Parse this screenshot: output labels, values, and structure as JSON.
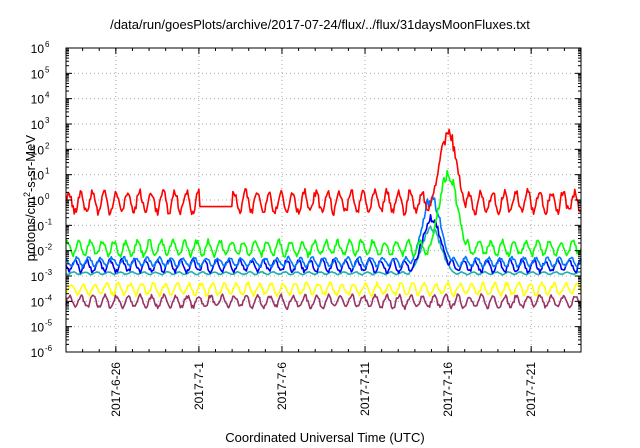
{
  "chart_data": {
    "type": "line",
    "title": "/data/run/goesPlots/archive/2017-07-24/flux/../flux/31daysMoonFluxes.txt",
    "xlabel": "Coordinated Universal Time (UTC)",
    "ylabel": {
      "prefix": "protons/cm",
      "exponent": "2",
      "suffix": "-s-sr-MeV"
    },
    "yscale": "log",
    "ylim_exponents": [
      -6,
      6
    ],
    "y_ticks": [
      {
        "base": "10",
        "exp": "-6"
      },
      {
        "base": "10",
        "exp": "-5"
      },
      {
        "base": "10",
        "exp": "-4"
      },
      {
        "base": "10",
        "exp": "-3"
      },
      {
        "base": "10",
        "exp": "-2"
      },
      {
        "base": "10",
        "exp": "-1"
      },
      {
        "base": "10",
        "exp": "0"
      },
      {
        "base": "10",
        "exp": "1"
      },
      {
        "base": "10",
        "exp": "2"
      },
      {
        "base": "10",
        "exp": "3"
      },
      {
        "base": "10",
        "exp": "4"
      },
      {
        "base": "10",
        "exp": "5"
      },
      {
        "base": "10",
        "exp": "6"
      }
    ],
    "x_range_days": [
      "2017-06-23",
      "2017-07-24"
    ],
    "x_ticks": [
      "2017-6-26",
      "2017-7-1",
      "2017-7-6",
      "2017-7-11",
      "2017-7-16",
      "2017-7-21"
    ],
    "grid": true,
    "series": [
      {
        "color": "#ff0000",
        "base": [
          0.1,
          3.0
        ],
        "gaps": [
          [
            "2017-07-01",
            "2017-07-03"
          ]
        ],
        "event_peak": 800,
        "event_day": "2017-07-16"
      },
      {
        "color": "#00ff00",
        "base": [
          0.003,
          0.03
        ],
        "event_peak": 20,
        "event_day": "2017-07-16"
      },
      {
        "color": "#0077ff",
        "base": [
          0.0015,
          0.006
        ],
        "event_peak": 2,
        "event_day": "2017-07-15"
      },
      {
        "color": "#0000ee",
        "base": [
          0.0008,
          0.005
        ],
        "event_peak": 0.3,
        "event_day": "2017-07-15"
      },
      {
        "color": "#1ab0b0",
        "base": [
          0.001,
          0.0015
        ],
        "event_peak": 0.1,
        "event_day": "2017-07-15"
      },
      {
        "color": "#ffff00",
        "base": [
          0.0001,
          0.0006
        ]
      },
      {
        "color": "#993366",
        "base": [
          3e-05,
          0.0002
        ]
      }
    ]
  }
}
